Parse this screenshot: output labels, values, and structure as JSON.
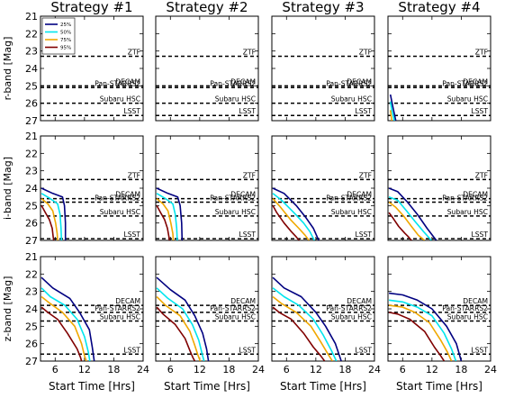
{
  "chart_data": {
    "type": "line",
    "column_titles": [
      "Strategy #1",
      "Strategy #2",
      "Strategy #3",
      "Strategy #4"
    ],
    "row_labels": [
      "r-band [Mag]",
      "i-band [Mag]",
      "z-band [Mag]"
    ],
    "xlabel": "Start Time [Hrs]",
    "xlim": [
      3,
      24
    ],
    "xticks": [
      "6",
      "12",
      "18",
      "24"
    ],
    "ylim": [
      27,
      21
    ],
    "yticks": [
      "21",
      "22",
      "23",
      "24",
      "25",
      "26",
      "27"
    ],
    "legend": {
      "placement": "top-left of first panel",
      "entries": [
        {
          "label": "25%",
          "color": "#000080"
        },
        {
          "label": "50%",
          "color": "#00e5ee"
        },
        {
          "label": "75%",
          "color": "#f0a800"
        },
        {
          "label": "95%",
          "color": "#800000"
        }
      ]
    },
    "reference_lines": [
      {
        "name": "ZTF",
        "mag": [
          23.3,
          23.5,
          null
        ]
      },
      {
        "name": "DECAM",
        "mag": [
          25.0,
          24.6,
          23.8
        ]
      },
      {
        "name": "Pan-STARRS2",
        "mag": [
          25.1,
          24.8,
          24.2
        ]
      },
      {
        "name": "Subaru HSC",
        "mag": [
          26.0,
          25.6,
          24.7
        ]
      },
      {
        "name": "LSST",
        "mag": [
          26.7,
          26.9,
          26.6
        ]
      }
    ],
    "panels": [
      [
        {
          "series": []
        },
        {
          "series": []
        },
        {
          "series": []
        },
        {
          "series": [
            {
              "name": "25%",
              "x": [
                3.5,
                4.0,
                4.6
              ],
              "y": [
                25.5,
                26.2,
                27.0
              ]
            },
            {
              "name": "50%",
              "x": [
                3.5,
                3.8,
                4.3
              ],
              "y": [
                25.9,
                26.4,
                27.0
              ]
            },
            {
              "name": "75%",
              "x": [
                3.5,
                3.8
              ],
              "y": [
                26.4,
                27.0
              ]
            }
          ]
        }
      ],
      [
        {
          "series": [
            {
              "name": "25%",
              "x": [
                3.2,
                5.5,
                7.5,
                7.9,
                8.1,
                8.1
              ],
              "y": [
                24.0,
                24.3,
                24.5,
                25.0,
                26.0,
                27.0
              ]
            },
            {
              "name": "50%",
              "x": [
                3.2,
                5.0,
                6.5,
                7.0,
                7.2,
                7.3
              ],
              "y": [
                24.3,
                24.6,
                24.9,
                25.5,
                26.3,
                27.0
              ]
            },
            {
              "name": "75%",
              "x": [
                3.2,
                4.5,
                5.5,
                6.1,
                6.4,
                6.5
              ],
              "y": [
                24.6,
                24.9,
                25.3,
                26.0,
                26.6,
                27.0
              ]
            },
            {
              "name": "95%",
              "x": [
                3.2,
                4.0,
                4.8,
                5.4,
                5.6,
                5.7
              ],
              "y": [
                25.0,
                25.4,
                25.8,
                26.3,
                26.8,
                27.0
              ]
            }
          ]
        },
        {
          "series": [
            {
              "name": "25%",
              "x": [
                3.2,
                5.5,
                7.5,
                8.0,
                8.3,
                8.4
              ],
              "y": [
                24.0,
                24.3,
                24.5,
                25.0,
                26.0,
                27.0
              ]
            },
            {
              "name": "50%",
              "x": [
                3.2,
                5.0,
                6.5,
                7.0,
                7.3,
                7.4
              ],
              "y": [
                24.3,
                24.6,
                24.9,
                25.5,
                26.3,
                27.0
              ]
            },
            {
              "name": "75%",
              "x": [
                3.2,
                4.5,
                5.5,
                6.1,
                6.5,
                6.6
              ],
              "y": [
                24.6,
                24.9,
                25.3,
                26.0,
                26.6,
                27.0
              ]
            },
            {
              "name": "95%",
              "x": [
                3.2,
                4.0,
                4.8,
                5.4,
                5.7,
                5.8
              ],
              "y": [
                25.0,
                25.4,
                25.8,
                26.3,
                26.8,
                27.0
              ]
            }
          ]
        },
        {
          "series": [
            {
              "name": "25%",
              "x": [
                3.2,
                5.5,
                8.0,
                10.0,
                11.5,
                12.6
              ],
              "y": [
                24.0,
                24.3,
                25.0,
                25.7,
                26.3,
                27.0
              ]
            },
            {
              "name": "50%",
              "x": [
                3.2,
                5.0,
                7.5,
                9.5,
                10.8,
                11.7
              ],
              "y": [
                24.3,
                24.7,
                25.4,
                26.0,
                26.5,
                27.0
              ]
            },
            {
              "name": "75%",
              "x": [
                3.2,
                4.5,
                6.8,
                8.5,
                9.8,
                10.6
              ],
              "y": [
                24.6,
                25.0,
                25.8,
                26.3,
                26.7,
                27.0
              ]
            },
            {
              "name": "95%",
              "x": [
                3.2,
                4.0,
                5.5,
                7.0,
                8.0,
                8.6
              ],
              "y": [
                25.0,
                25.4,
                26.0,
                26.5,
                26.8,
                27.0
              ]
            }
          ]
        },
        {
          "series": [
            {
              "name": "25%",
              "x": [
                3.2,
                5.0,
                7.0,
                9.0,
                11.0,
                12.9
              ],
              "y": [
                24.0,
                24.2,
                24.8,
                25.5,
                26.3,
                27.0
              ]
            },
            {
              "name": "50%",
              "x": [
                3.2,
                5.0,
                6.8,
                8.5,
                10.3,
                11.9
              ],
              "y": [
                24.5,
                24.7,
                25.3,
                25.9,
                26.5,
                27.0
              ]
            },
            {
              "name": "75%",
              "x": [
                3.2,
                4.6,
                6.2,
                7.8,
                9.2,
                10.5
              ],
              "y": [
                24.8,
                25.1,
                25.6,
                26.2,
                26.7,
                27.0
              ]
            },
            {
              "name": "95%",
              "x": [
                3.2,
                4.0,
                5.2,
                6.5,
                7.2,
                7.8
              ],
              "y": [
                25.4,
                25.7,
                26.2,
                26.6,
                26.8,
                27.0
              ]
            }
          ]
        }
      ],
      [
        {
          "series": [
            {
              "name": "25%",
              "x": [
                3.2,
                5.5,
                9.0,
                11.0,
                13.0,
                13.6,
                14.0
              ],
              "y": [
                22.2,
                22.8,
                23.4,
                24.2,
                25.2,
                26.2,
                27.0
              ]
            },
            {
              "name": "50%",
              "x": [
                3.2,
                5.0,
                8.0,
                10.5,
                12.0,
                12.8,
                13.1
              ],
              "y": [
                22.8,
                23.3,
                23.8,
                24.6,
                25.6,
                26.5,
                27.0
              ]
            },
            {
              "name": "75%",
              "x": [
                3.2,
                5.0,
                7.5,
                10.0,
                11.4,
                12.0,
                12.4
              ],
              "y": [
                23.3,
                23.7,
                24.2,
                25.0,
                26.0,
                26.7,
                27.0
              ]
            },
            {
              "name": "95%",
              "x": [
                3.2,
                4.5,
                6.5,
                8.5,
                10.5,
                11.2,
                11.4
              ],
              "y": [
                23.9,
                24.2,
                24.6,
                25.4,
                26.3,
                26.8,
                27.0
              ]
            }
          ]
        },
        {
          "series": [
            {
              "name": "25%",
              "x": [
                3.2,
                6.0,
                9.0,
                11.0,
                12.6,
                13.4,
                13.8
              ],
              "y": [
                22.2,
                22.9,
                23.5,
                24.4,
                25.4,
                26.3,
                27.0
              ]
            },
            {
              "name": "50%",
              "x": [
                3.2,
                5.5,
                8.5,
                10.5,
                11.8,
                12.5,
                12.9
              ],
              "y": [
                22.8,
                23.4,
                24.0,
                24.9,
                25.8,
                26.6,
                27.0
              ]
            },
            {
              "name": "75%",
              "x": [
                3.2,
                5.0,
                8.0,
                10.0,
                11.0,
                11.7,
                12.1
              ],
              "y": [
                23.3,
                23.8,
                24.4,
                25.3,
                26.1,
                26.7,
                27.0
              ]
            },
            {
              "name": "95%",
              "x": [
                3.2,
                4.5,
                7.0,
                9.0,
                10.0,
                10.6,
                11.0
              ],
              "y": [
                23.9,
                24.3,
                24.9,
                25.7,
                26.4,
                26.8,
                27.0
              ]
            }
          ]
        },
        {
          "series": [
            {
              "name": "25%",
              "x": [
                3.2,
                5.5,
                9.0,
                12.0,
                14.0,
                16.0,
                17.2
              ],
              "y": [
                22.2,
                22.8,
                23.3,
                24.2,
                25.0,
                26.0,
                27.0
              ]
            },
            {
              "name": "50%",
              "x": [
                3.2,
                5.5,
                8.5,
                11.5,
                13.5,
                15.2,
                16.2
              ],
              "y": [
                22.8,
                23.3,
                23.8,
                24.6,
                25.5,
                26.4,
                27.0
              ]
            },
            {
              "name": "75%",
              "x": [
                3.2,
                5.0,
                8.0,
                11.0,
                13.0,
                14.5,
                15.4
              ],
              "y": [
                23.3,
                23.7,
                24.2,
                25.0,
                25.9,
                26.6,
                27.0
              ]
            },
            {
              "name": "95%",
              "x": [
                3.2,
                4.5,
                7.0,
                9.5,
                11.5,
                13.0,
                13.8
              ],
              "y": [
                23.9,
                24.2,
                24.6,
                25.4,
                26.2,
                26.7,
                27.0
              ]
            }
          ]
        },
        {
          "series": [
            {
              "name": "25%",
              "x": [
                3.2,
                6.0,
                9.0,
                12.0,
                15.0,
                17.0,
                18.0
              ],
              "y": [
                23.1,
                23.2,
                23.5,
                24.0,
                25.0,
                26.0,
                27.0
              ]
            },
            {
              "name": "50%",
              "x": [
                3.2,
                6.0,
                9.0,
                12.0,
                14.5,
                16.0,
                16.9
              ],
              "y": [
                23.5,
                23.6,
                23.9,
                24.4,
                25.4,
                26.3,
                27.0
              ]
            },
            {
              "name": "75%",
              "x": [
                3.2,
                6.0,
                8.5,
                11.5,
                13.8,
                15.2,
                16.0
              ],
              "y": [
                23.8,
                23.9,
                24.2,
                24.8,
                25.8,
                26.5,
                27.0
              ]
            },
            {
              "name": "95%",
              "x": [
                3.2,
                5.0,
                7.5,
                10.5,
                12.5,
                13.8,
                14.5
              ],
              "y": [
                24.2,
                24.3,
                24.6,
                25.3,
                26.2,
                26.7,
                27.0
              ]
            }
          ]
        }
      ]
    ]
  }
}
